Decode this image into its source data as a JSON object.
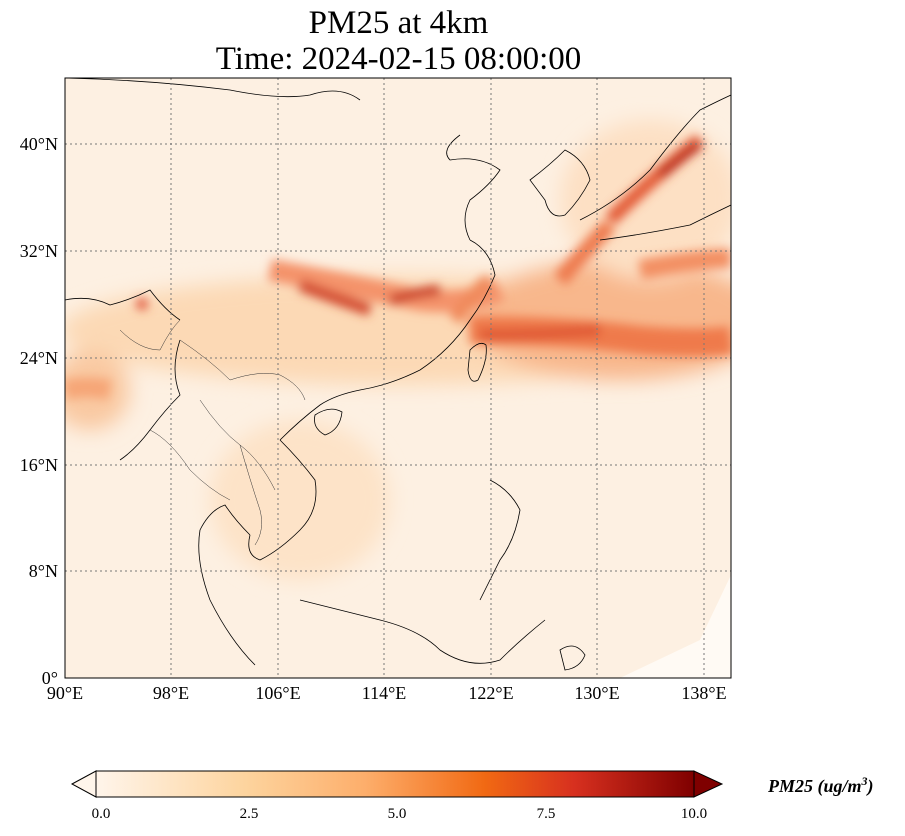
{
  "title_line1": "PM25 at 4km",
  "title_line2": "Time: 2024-02-15 08:00:00",
  "lat_ticks": [
    "40°N",
    "32°N",
    "24°N",
    "16°N",
    "8°N",
    "0°"
  ],
  "lon_ticks": [
    "90°E",
    "98°E",
    "106°E",
    "114°E",
    "122°E",
    "130°E",
    "138°E"
  ],
  "colorbar": {
    "label": "PM25 (ug/m",
    "label_sup": "3",
    "label_end": ")",
    "ticks": [
      "0.0",
      "2.5",
      "5.0",
      "7.5",
      "10.0"
    ],
    "colors": [
      "#fff5eb",
      "#fdd49e",
      "#fdae6b",
      "#f16913",
      "#d7301f",
      "#7f0000"
    ]
  },
  "map_extent": {
    "lon_min": 90,
    "lon_max": 140,
    "lat_min": 0,
    "lat_max": 45
  }
}
